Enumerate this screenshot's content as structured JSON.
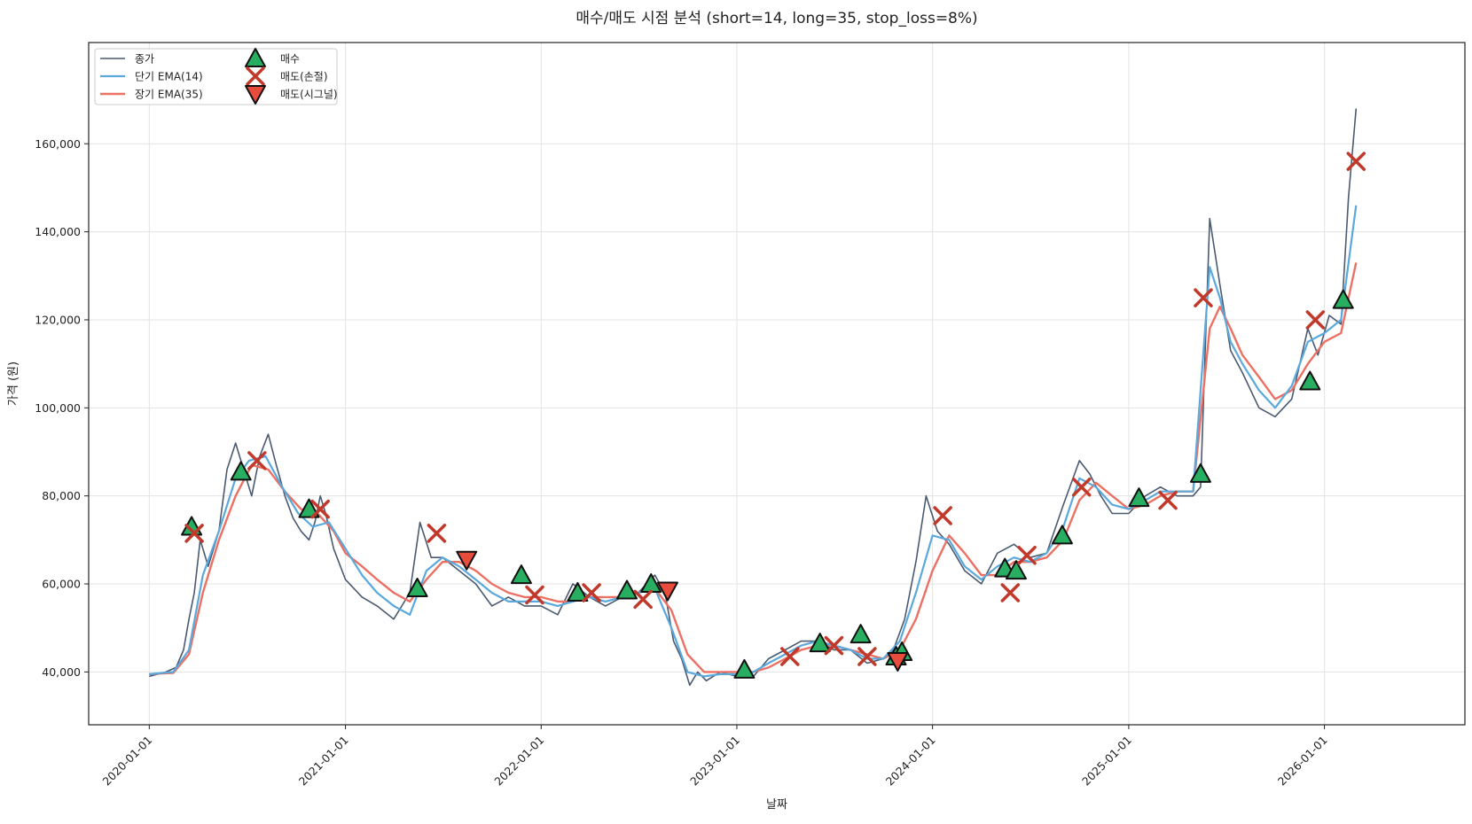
{
  "chart_data": {
    "type": "line",
    "title": "매수/매도 시점 분석 (short=14, long=35, stop_loss=8%)",
    "xlabel": "날짜",
    "ylabel": "가격 (원)",
    "x_type": "date",
    "xlim": [
      "2019-09-10",
      "2026-09-20"
    ],
    "ylim": [
      28000,
      183000
    ],
    "x_ticks": [
      "2020-01-01",
      "2021-01-01",
      "2022-01-01",
      "2023-01-01",
      "2024-01-01",
      "2025-01-01",
      "2026-01-01"
    ],
    "y_ticks": [
      40000,
      60000,
      80000,
      100000,
      120000,
      140000,
      160000
    ],
    "y_tick_labels": [
      "40,000",
      "60,000",
      "80,000",
      "100,000",
      "120,000",
      "140,000",
      "160,000"
    ],
    "grid": true,
    "legend_position": "top-left",
    "colors": {
      "close": "#4a5a70",
      "ema_short": "#5aa8dc",
      "ema_long": "#ec7063",
      "buy": "#27ae60",
      "sell_stop": "#c0392b",
      "sell_signal": "#e74c3c"
    },
    "series": [
      {
        "name": "종가",
        "x": [
          "2020-01-01",
          "2020-02-01",
          "2020-02-20",
          "2020-03-05",
          "2020-03-15",
          "2020-03-25",
          "2020-04-05",
          "2020-04-20",
          "2020-05-10",
          "2020-05-25",
          "2020-06-10",
          "2020-06-25",
          "2020-07-10",
          "2020-07-25",
          "2020-08-10",
          "2020-08-25",
          "2020-09-10",
          "2020-09-25",
          "2020-10-10",
          "2020-10-25",
          "2020-11-05",
          "2020-11-15",
          "2020-11-25",
          "2020-12-10",
          "2021-01-01",
          "2021-02-01",
          "2021-03-01",
          "2021-04-01",
          "2021-05-01",
          "2021-05-20",
          "2021-06-10",
          "2021-07-01",
          "2021-08-01",
          "2021-09-01",
          "2021-10-01",
          "2021-11-01",
          "2021-12-01",
          "2022-01-01",
          "2022-02-01",
          "2022-03-01",
          "2022-04-01",
          "2022-05-01",
          "2022-06-01",
          "2022-07-01",
          "2022-08-01",
          "2022-08-20",
          "2022-09-05",
          "2022-09-20",
          "2022-10-05",
          "2022-10-20",
          "2022-11-05",
          "2022-12-01",
          "2023-01-01",
          "2023-02-01",
          "2023-03-01",
          "2023-04-01",
          "2023-05-01",
          "2023-06-01",
          "2023-07-01",
          "2023-08-01",
          "2023-09-01",
          "2023-10-01",
          "2023-10-20",
          "2023-11-10",
          "2023-12-01",
          "2023-12-20",
          "2024-01-10",
          "2024-02-01",
          "2024-03-01",
          "2024-04-01",
          "2024-05-01",
          "2024-06-01",
          "2024-07-01",
          "2024-08-01",
          "2024-09-01",
          "2024-10-01",
          "2024-10-20",
          "2024-11-10",
          "2024-12-01",
          "2025-01-01",
          "2025-02-01",
          "2025-03-01",
          "2025-04-01",
          "2025-05-01",
          "2025-05-15",
          "2025-06-01",
          "2025-06-20",
          "2025-07-10",
          "2025-08-01",
          "2025-09-01",
          "2025-10-01",
          "2025-11-01",
          "2025-12-01",
          "2025-12-20",
          "2026-01-10",
          "2026-02-01",
          "2026-02-15",
          "2026-03-01"
        ],
        "values": [
          39000,
          40000,
          41000,
          45000,
          52000,
          58000,
          70000,
          64000,
          72000,
          86000,
          92000,
          86000,
          80000,
          89000,
          94000,
          87000,
          80000,
          75000,
          72000,
          70000,
          74000,
          80000,
          76000,
          68000,
          61000,
          57000,
          55000,
          52000,
          58000,
          74000,
          66000,
          66000,
          63000,
          60000,
          55000,
          57000,
          55000,
          55000,
          53000,
          60000,
          57000,
          55000,
          57000,
          58000,
          62000,
          58000,
          47000,
          43000,
          37000,
          40000,
          38000,
          40000,
          39000,
          39000,
          43000,
          45000,
          47000,
          47000,
          45000,
          45000,
          42000,
          43000,
          45000,
          52000,
          65000,
          80000,
          72000,
          69000,
          63000,
          60000,
          67000,
          69000,
          66000,
          67000,
          78000,
          88000,
          85000,
          80000,
          76000,
          76000,
          80000,
          82000,
          80000,
          80000,
          82000,
          143000,
          128000,
          113000,
          108000,
          100000,
          98000,
          102000,
          118000,
          112000,
          121000,
          119000,
          148000,
          168000
        ]
      },
      {
        "name": "단기 EMA(14)",
        "x": [
          "2020-01-01",
          "2020-02-15",
          "2020-03-15",
          "2020-04-10",
          "2020-05-10",
          "2020-06-10",
          "2020-07-05",
          "2020-08-05",
          "2020-09-05",
          "2020-10-05",
          "2020-11-01",
          "2020-12-01",
          "2021-01-01",
          "2021-02-01",
          "2021-03-01",
          "2021-04-01",
          "2021-05-01",
          "2021-06-01",
          "2021-07-01",
          "2021-08-01",
          "2021-09-01",
          "2021-10-01",
          "2021-11-01",
          "2021-12-01",
          "2022-01-01",
          "2022-02-01",
          "2022-03-01",
          "2022-04-01",
          "2022-05-01",
          "2022-06-01",
          "2022-07-01",
          "2022-08-01",
          "2022-09-01",
          "2022-10-01",
          "2022-11-01",
          "2022-12-01",
          "2023-01-01",
          "2023-02-01",
          "2023-03-01",
          "2023-04-01",
          "2023-05-01",
          "2023-06-01",
          "2023-07-01",
          "2023-08-01",
          "2023-09-01",
          "2023-10-01",
          "2023-11-01",
          "2023-12-01",
          "2024-01-01",
          "2024-02-01",
          "2024-03-01",
          "2024-04-01",
          "2024-05-01",
          "2024-06-01",
          "2024-07-01",
          "2024-08-01",
          "2024-09-01",
          "2024-10-01",
          "2024-11-01",
          "2024-12-01",
          "2025-01-01",
          "2025-02-01",
          "2025-03-01",
          "2025-04-01",
          "2025-05-01",
          "2025-06-01",
          "2025-06-20",
          "2025-07-10",
          "2025-08-01",
          "2025-09-01",
          "2025-10-01",
          "2025-11-01",
          "2025-12-01",
          "2026-01-01",
          "2026-02-01",
          "2026-03-01"
        ],
        "values": [
          39500,
          40000,
          45000,
          62000,
          72000,
          84000,
          88000,
          89000,
          82000,
          76000,
          73000,
          74000,
          68000,
          62000,
          58000,
          55000,
          53000,
          63000,
          66000,
          64000,
          61000,
          58000,
          56000,
          56000,
          56000,
          55000,
          56000,
          57000,
          56000,
          57000,
          58000,
          59000,
          50000,
          40000,
          39000,
          39500,
          39500,
          40000,
          42000,
          44000,
          46000,
          47000,
          46000,
          45000,
          43000,
          43000,
          47000,
          58000,
          71000,
          70000,
          64000,
          61000,
          64000,
          66000,
          65000,
          67000,
          73000,
          84000,
          82000,
          78000,
          77000,
          79000,
          81000,
          81000,
          81000,
          132000,
          125000,
          115000,
          110000,
          104000,
          100000,
          105000,
          115000,
          117000,
          120000,
          146000
        ]
      },
      {
        "name": "장기 EMA(35)",
        "x": [
          "2020-01-01",
          "2020-02-15",
          "2020-03-15",
          "2020-04-10",
          "2020-05-10",
          "2020-06-10",
          "2020-07-10",
          "2020-08-10",
          "2020-09-10",
          "2020-10-10",
          "2020-11-10",
          "2020-12-10",
          "2021-01-01",
          "2021-02-01",
          "2021-03-01",
          "2021-04-01",
          "2021-05-01",
          "2021-06-01",
          "2021-07-01",
          "2021-08-01",
          "2021-09-01",
          "2021-10-01",
          "2021-11-01",
          "2021-12-01",
          "2022-01-01",
          "2022-02-01",
          "2022-03-01",
          "2022-04-01",
          "2022-05-01",
          "2022-06-01",
          "2022-07-01",
          "2022-08-01",
          "2022-09-01",
          "2022-10-01",
          "2022-11-01",
          "2022-12-01",
          "2023-01-01",
          "2023-02-01",
          "2023-03-01",
          "2023-04-01",
          "2023-05-01",
          "2023-06-01",
          "2023-07-01",
          "2023-08-01",
          "2023-09-01",
          "2023-10-01",
          "2023-11-01",
          "2023-12-01",
          "2024-01-01",
          "2024-02-01",
          "2024-03-01",
          "2024-04-01",
          "2024-05-01",
          "2024-06-01",
          "2024-07-01",
          "2024-08-01",
          "2024-09-01",
          "2024-10-01",
          "2024-11-01",
          "2024-12-01",
          "2025-01-01",
          "2025-02-01",
          "2025-03-01",
          "2025-04-01",
          "2025-05-01",
          "2025-06-01",
          "2025-06-20",
          "2025-07-10",
          "2025-08-01",
          "2025-09-01",
          "2025-10-01",
          "2025-11-01",
          "2025-12-01",
          "2026-01-01",
          "2026-02-01",
          "2026-03-01"
        ],
        "values": [
          39500,
          39800,
          44000,
          58000,
          70000,
          80000,
          87000,
          86000,
          81000,
          77000,
          76000,
          72000,
          67000,
          64000,
          61000,
          58000,
          56000,
          61000,
          65000,
          65000,
          63000,
          60000,
          58000,
          57000,
          57000,
          56000,
          56000,
          57000,
          57000,
          57000,
          58000,
          59000,
          54000,
          44000,
          40000,
          40000,
          40000,
          40000,
          41000,
          43000,
          45000,
          46000,
          46000,
          45000,
          44000,
          43000,
          45000,
          52000,
          63000,
          71000,
          67000,
          62000,
          62000,
          65000,
          65000,
          66000,
          70000,
          79000,
          83000,
          80000,
          77000,
          78000,
          80000,
          81000,
          81000,
          118000,
          123000,
          118000,
          112000,
          107000,
          102000,
          104000,
          110000,
          115000,
          117000,
          133000
        ]
      }
    ],
    "markers": {
      "매수": [
        {
          "x": "2020-03-20",
          "y": 73000
        },
        {
          "x": "2020-06-20",
          "y": 85500
        },
        {
          "x": "2020-10-25",
          "y": 77000
        },
        {
          "x": "2021-05-15",
          "y": 59000
        },
        {
          "x": "2021-11-25",
          "y": 62000
        },
        {
          "x": "2022-03-10",
          "y": 58000
        },
        {
          "x": "2022-06-10",
          "y": 58500
        },
        {
          "x": "2022-07-25",
          "y": 60000
        },
        {
          "x": "2023-01-15",
          "y": 40500
        },
        {
          "x": "2023-06-05",
          "y": 46500
        },
        {
          "x": "2023-08-20",
          "y": 48500
        },
        {
          "x": "2023-10-25",
          "y": 43500
        },
        {
          "x": "2023-11-05",
          "y": 44500
        },
        {
          "x": "2024-05-15",
          "y": 63500
        },
        {
          "x": "2024-06-05",
          "y": 63000
        },
        {
          "x": "2024-08-30",
          "y": 71000
        },
        {
          "x": "2025-01-20",
          "y": 79500
        },
        {
          "x": "2025-05-15",
          "y": 85000
        },
        {
          "x": "2025-12-05",
          "y": 106000
        },
        {
          "x": "2026-02-05",
          "y": 124500
        }
      ],
      "매도(손절)": [
        {
          "x": "2020-03-25",
          "y": 71500
        },
        {
          "x": "2020-07-20",
          "y": 88000
        },
        {
          "x": "2020-11-15",
          "y": 77000
        },
        {
          "x": "2021-06-20",
          "y": 71500
        },
        {
          "x": "2021-12-20",
          "y": 57500
        },
        {
          "x": "2022-04-05",
          "y": 58000
        },
        {
          "x": "2022-07-10",
          "y": 56500
        },
        {
          "x": "2023-04-10",
          "y": 43500
        },
        {
          "x": "2023-07-01",
          "y": 46000
        },
        {
          "x": "2023-09-01",
          "y": 43500
        },
        {
          "x": "2024-01-20",
          "y": 75500
        },
        {
          "x": "2024-05-25",
          "y": 58000
        },
        {
          "x": "2024-06-25",
          "y": 66500
        },
        {
          "x": "2024-10-05",
          "y": 82000
        },
        {
          "x": "2025-03-15",
          "y": 79000
        },
        {
          "x": "2025-05-20",
          "y": 125000
        },
        {
          "x": "2025-12-15",
          "y": 120000
        },
        {
          "x": "2026-03-01",
          "y": 156000
        }
      ],
      "매도(시그널)": [
        {
          "x": "2021-08-15",
          "y": 65500
        },
        {
          "x": "2022-08-25",
          "y": 58500
        },
        {
          "x": "2023-10-28",
          "y": 42500
        }
      ]
    }
  }
}
